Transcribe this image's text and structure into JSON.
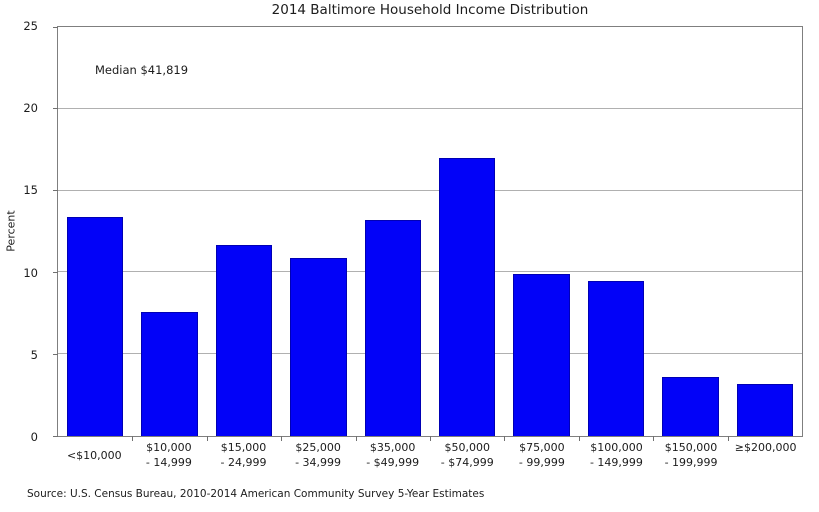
{
  "figure": {
    "title": "2014 Baltimore Household Income Distribution",
    "annotation": "Median $41,819",
    "ylabel": "Percent",
    "source": "Source: U.S. Census Bureau, 2010-2014 American Community Survey 5-Year Estimates"
  },
  "colors": {
    "bar_fill": "#0202f8",
    "bar_edge": "#0000b4",
    "grid": "#b0b0b0",
    "axis": "#7f7f7f",
    "tick": "#707070"
  },
  "chart_data": {
    "type": "bar",
    "title": "2014 Baltimore Household Income Distribution",
    "xlabel": "",
    "ylabel": "Percent",
    "ylim": [
      0,
      25
    ],
    "yticks": [
      0,
      5,
      10,
      15,
      20,
      25
    ],
    "grid": true,
    "legend": false,
    "categories": [
      "<$10,000",
      "$10,000\n- 14,999",
      "$15,000\n- 24,999",
      "$25,000\n- 34,999",
      "$35,000\n- $49,999",
      "$50,000\n- $74,999",
      "$75,000\n- 99,999",
      "$100,000\n- 149,999",
      "$150,000\n- 199,999",
      "≥$200,000"
    ],
    "values": [
      13.4,
      7.6,
      11.7,
      10.9,
      13.2,
      17.0,
      9.9,
      9.5,
      3.6,
      3.2
    ],
    "annotation": "Median $41,819",
    "source_note": "Source: U.S. Census Bureau, 2010-2014 American Community Survey 5-Year Estimates"
  }
}
